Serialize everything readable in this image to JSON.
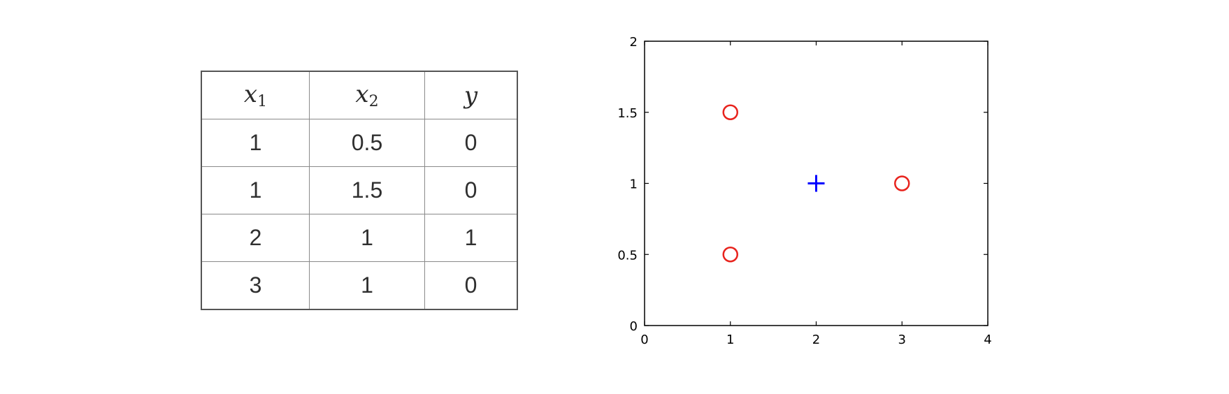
{
  "table": {
    "headers": [
      {
        "var": "x",
        "sub": "1"
      },
      {
        "var": "x",
        "sub": "2"
      },
      {
        "var": "y",
        "sub": ""
      }
    ],
    "rows": [
      [
        "1",
        "0.5",
        "0"
      ],
      [
        "1",
        "1.5",
        "0"
      ],
      [
        "2",
        "1",
        "1"
      ],
      [
        "3",
        "1",
        "0"
      ]
    ]
  },
  "chart_data": {
    "type": "scatter",
    "title": "",
    "xlabel": "",
    "ylabel": "",
    "xlim": [
      0,
      4
    ],
    "ylim": [
      0,
      2
    ],
    "xticks": [
      0,
      1,
      2,
      3,
      4
    ],
    "yticks": [
      0,
      0.5,
      1,
      1.5,
      2
    ],
    "xtick_labels": [
      "0",
      "1",
      "2",
      "3",
      "4"
    ],
    "ytick_labels": [
      "0",
      "0.5",
      "1",
      "1.5",
      "2"
    ],
    "grid": false,
    "series": [
      {
        "marker": "circle",
        "color": "#e8231d",
        "points": [
          [
            1,
            0.5
          ],
          [
            1,
            1.5
          ],
          [
            3,
            1
          ]
        ]
      },
      {
        "marker": "plus",
        "color": "#0000ff",
        "points": [
          [
            2,
            1
          ]
        ]
      }
    ]
  }
}
